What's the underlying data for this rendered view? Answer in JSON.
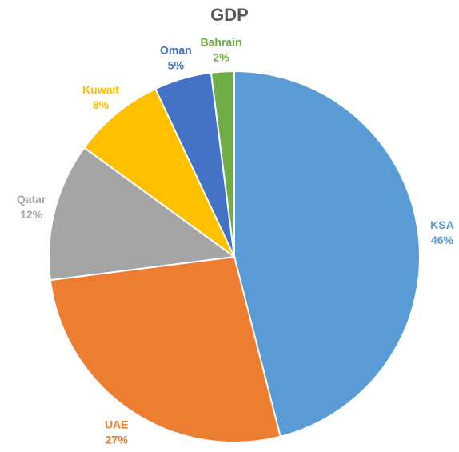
{
  "chart_data": {
    "type": "pie",
    "title": "GDP",
    "slices": [
      {
        "label": "KSA",
        "value": 46,
        "value_label": "46%",
        "color": "#5B9BD5"
      },
      {
        "label": "UAE",
        "value": 27,
        "value_label": "27%",
        "color": "#ED7D31"
      },
      {
        "label": "Qatar",
        "value": 12,
        "value_label": "12%",
        "color": "#A5A5A5"
      },
      {
        "label": "Kuwait",
        "value": 8,
        "value_label": "8%",
        "color": "#FFC000"
      },
      {
        "label": "Oman",
        "value": 5,
        "value_label": "5%",
        "color": "#4472C4"
      },
      {
        "label": "Bahrain",
        "value": 2,
        "value_label": "2%",
        "color": "#70AD47"
      }
    ],
    "legend": "none",
    "label_position": "outside"
  }
}
